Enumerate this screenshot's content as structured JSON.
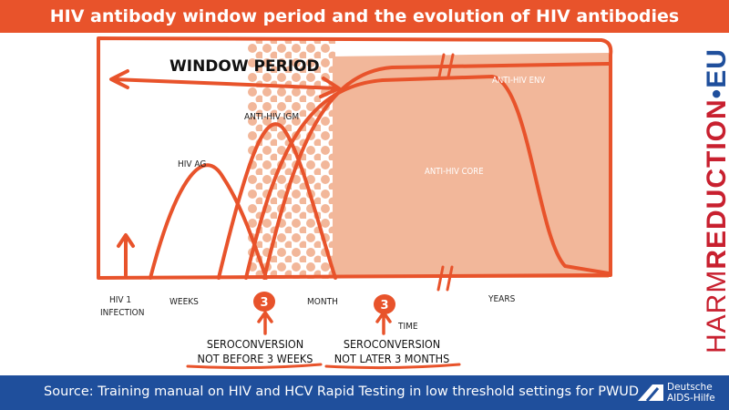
{
  "title": "HIV antibody window period and the evolution of HIV antibodies",
  "colors": {
    "accent": "#e8532b",
    "fill": "#f2b79a",
    "footer": "#1f4f9c",
    "brand_red": "#c8202f"
  },
  "diagram": {
    "window_period": "WINDOW PERIOD",
    "curves": {
      "hiv_ag": "HIV AG",
      "igm": "ANTI-HIV IGM",
      "core": "ANTI-HIV CORE",
      "env": "ANTI-HIV ENV"
    },
    "axis": {
      "infection_1": "HIV 1",
      "infection_2": "INFECTION",
      "weeks": "WEEKS",
      "month": "MONTH",
      "years": "YEARS",
      "time": "TIME"
    },
    "badge_weeks": "3",
    "badge_months": "3",
    "sero_weeks_1": "SEROCONVERSION",
    "sero_weeks_2": "NOT BEFORE 3 WEEKS",
    "sero_months_1": "SEROCONVERSION",
    "sero_months_2": "NOT LATER 3 MONTHS"
  },
  "brand": {
    "part1": "HARM",
    "part2": "REDUCTION",
    "part3": "•EU"
  },
  "footer": {
    "source": "Source: Training manual on HIV and HCV Rapid Testing in low threshold settings for PWUD",
    "logo_line1": "Deutsche",
    "logo_line2": "AIDS-Hilfe"
  }
}
